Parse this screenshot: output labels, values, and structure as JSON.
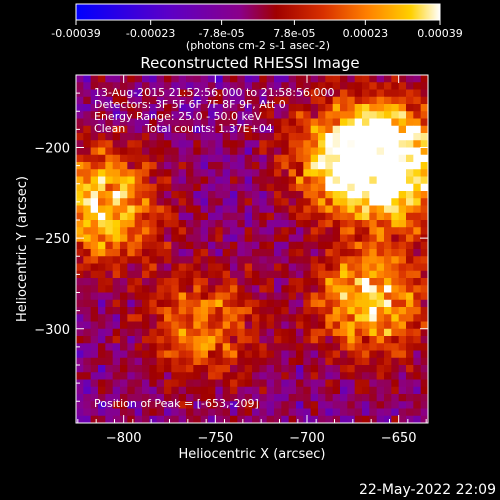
{
  "colorbar": {
    "tick_labels": [
      "-0.00039",
      "-0.00023",
      "-7.8e-05",
      "7.8e-05",
      "0.00023",
      "0.00039"
    ],
    "tick_values": [
      -0.00039,
      -0.00023,
      -7.8e-05,
      7.8e-05,
      0.00023,
      0.00039
    ],
    "range": [
      -0.00039,
      0.00039
    ],
    "units_label": "(photons cm-2 s-1 asec-2)",
    "colormap": [
      "#0000ff",
      "#5a00c8",
      "#8a008a",
      "#a00000",
      "#d83000",
      "#ff8000",
      "#ffd000",
      "#ffffff"
    ]
  },
  "chart_data": {
    "type": "heatmap",
    "title": "Reconstructed RHESSI Image",
    "xlabel": "Heliocentric X (arcsec)",
    "ylabel": "Heliocentric Y (arcsec)",
    "xlim": [
      -826,
      -634
    ],
    "ylim": [
      -352,
      -160
    ],
    "x_ticks": [
      -800,
      -750,
      -700,
      -650
    ],
    "y_ticks": [
      -200,
      -250,
      -300
    ],
    "annotations": {
      "time_range": "13-Aug-2015 21:52:56.000 to 21:58:56.000",
      "detectors": "Detectors: 3F 5F 6F 7F 8F 9F, Att 0",
      "energy": "Energy Range: 25.0 - 50.0 keV",
      "clean": "Clean",
      "counts": "Total counts: 1.37E+04",
      "peak": "Position of Peak = [-653,-209]"
    },
    "bright_sources": [
      {
        "x": -812,
        "y": -232,
        "peak": 0.8
      },
      {
        "x": -757,
        "y": -298,
        "peak": 0.55
      },
      {
        "x": -680,
        "y": -206,
        "peak": 0.7
      },
      {
        "x": -653,
        "y": -209,
        "peak": 1.0
      },
      {
        "x": -665,
        "y": -285,
        "peak": 0.75
      }
    ]
  },
  "footer": {
    "date": "22-May-2022 22:09"
  }
}
